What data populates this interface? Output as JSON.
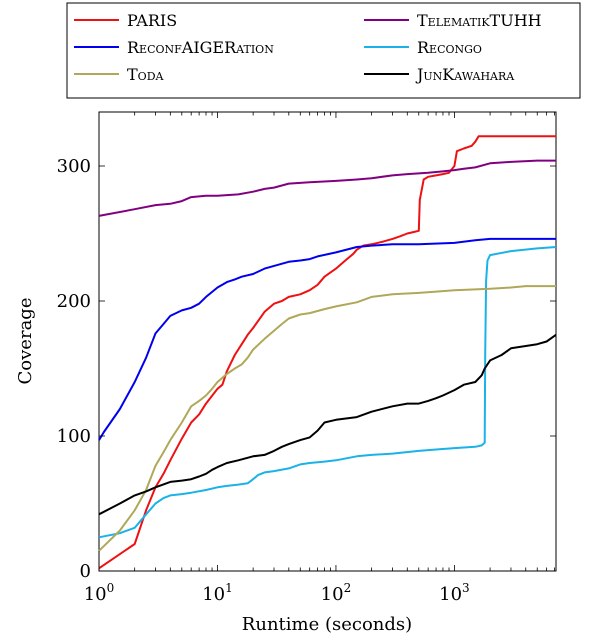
{
  "chart_data": {
    "type": "line",
    "xlabel": "Runtime (seconds)",
    "ylabel": "Coverage",
    "xscale": "log",
    "xlim": [
      1,
      7200
    ],
    "ylim": [
      0,
      340
    ],
    "grid": false,
    "legend_placement": "top",
    "x_tick_labels": [
      {
        "base": "10",
        "exp": "0",
        "value": 1
      },
      {
        "base": "10",
        "exp": "1",
        "value": 10
      },
      {
        "base": "10",
        "exp": "2",
        "value": 100
      },
      {
        "base": "10",
        "exp": "3",
        "value": 1000
      }
    ],
    "y_tick_labels": [
      {
        "label": "0",
        "value": 0
      },
      {
        "label": "100",
        "value": 100
      },
      {
        "label": "200",
        "value": 200
      },
      {
        "label": "300",
        "value": 300
      }
    ],
    "series": [
      {
        "name": "PARIS",
        "color": "#ee1111",
        "points": [
          [
            1,
            2
          ],
          [
            2,
            20
          ],
          [
            2.5,
            45
          ],
          [
            3,
            62
          ],
          [
            3.5,
            72
          ],
          [
            4,
            82
          ],
          [
            5,
            98
          ],
          [
            6,
            110
          ],
          [
            7,
            116
          ],
          [
            8,
            124
          ],
          [
            10,
            135
          ],
          [
            11,
            138
          ],
          [
            12,
            148
          ],
          [
            14,
            160
          ],
          [
            16,
            168
          ],
          [
            18,
            175
          ],
          [
            20,
            180
          ],
          [
            25,
            192
          ],
          [
            30,
            198
          ],
          [
            35,
            200
          ],
          [
            40,
            203
          ],
          [
            50,
            205
          ],
          [
            60,
            208
          ],
          [
            70,
            212
          ],
          [
            80,
            218
          ],
          [
            100,
            224
          ],
          [
            120,
            230
          ],
          [
            140,
            235
          ],
          [
            150,
            238
          ],
          [
            170,
            241
          ],
          [
            200,
            242
          ],
          [
            250,
            244
          ],
          [
            300,
            246
          ],
          [
            350,
            248
          ],
          [
            400,
            250
          ],
          [
            450,
            251
          ],
          [
            500,
            252
          ],
          [
            510,
            275
          ],
          [
            550,
            290
          ],
          [
            600,
            292
          ],
          [
            700,
            293
          ],
          [
            800,
            294
          ],
          [
            900,
            295
          ],
          [
            1000,
            300
          ],
          [
            1050,
            311
          ],
          [
            1200,
            313
          ],
          [
            1400,
            315
          ],
          [
            1500,
            318
          ],
          [
            1600,
            322
          ],
          [
            2000,
            322
          ],
          [
            4000,
            322
          ],
          [
            7200,
            322
          ]
        ]
      },
      {
        "name": "TelematikTUHH",
        "color": "#800080",
        "points": [
          [
            1,
            263
          ],
          [
            2,
            268
          ],
          [
            3,
            271
          ],
          [
            4,
            272
          ],
          [
            5,
            274
          ],
          [
            6,
            277
          ],
          [
            8,
            278
          ],
          [
            10,
            278
          ],
          [
            15,
            279
          ],
          [
            20,
            281
          ],
          [
            25,
            283
          ],
          [
            30,
            284
          ],
          [
            40,
            287
          ],
          [
            60,
            288
          ],
          [
            100,
            289
          ],
          [
            150,
            290
          ],
          [
            200,
            291
          ],
          [
            300,
            293
          ],
          [
            400,
            294
          ],
          [
            600,
            295
          ],
          [
            800,
            296
          ],
          [
            1000,
            297
          ],
          [
            1200,
            298
          ],
          [
            1500,
            299
          ],
          [
            2000,
            302
          ],
          [
            3000,
            303
          ],
          [
            5000,
            304
          ],
          [
            7200,
            304
          ]
        ]
      },
      {
        "name": "ReconfAIGERation",
        "color": "#0000ee",
        "points": [
          [
            1,
            97
          ],
          [
            1.1,
            103
          ],
          [
            1.5,
            120
          ],
          [
            2,
            140
          ],
          [
            2.5,
            158
          ],
          [
            3,
            176
          ],
          [
            3.5,
            183
          ],
          [
            4,
            189
          ],
          [
            5,
            193
          ],
          [
            6,
            195
          ],
          [
            7,
            198
          ],
          [
            8,
            203
          ],
          [
            10,
            210
          ],
          [
            12,
            214
          ],
          [
            14,
            216
          ],
          [
            16,
            218
          ],
          [
            20,
            220
          ],
          [
            25,
            224
          ],
          [
            30,
            226
          ],
          [
            40,
            229
          ],
          [
            50,
            230
          ],
          [
            60,
            231
          ],
          [
            70,
            233
          ],
          [
            100,
            236
          ],
          [
            150,
            240
          ],
          [
            200,
            241
          ],
          [
            300,
            242
          ],
          [
            500,
            242
          ],
          [
            1000,
            243
          ],
          [
            1500,
            245
          ],
          [
            2000,
            246
          ],
          [
            4000,
            246
          ],
          [
            7200,
            246
          ]
        ]
      },
      {
        "name": "Recongo",
        "color": "#1ab2e8",
        "points": [
          [
            1,
            25
          ],
          [
            1.5,
            28
          ],
          [
            2,
            32
          ],
          [
            2.5,
            42
          ],
          [
            3,
            50
          ],
          [
            3.5,
            54
          ],
          [
            4,
            56
          ],
          [
            5,
            57
          ],
          [
            6,
            58
          ],
          [
            8,
            60
          ],
          [
            10,
            62
          ],
          [
            12,
            63
          ],
          [
            15,
            64
          ],
          [
            18,
            65
          ],
          [
            20,
            68
          ],
          [
            22,
            71
          ],
          [
            25,
            73
          ],
          [
            30,
            74
          ],
          [
            40,
            76
          ],
          [
            50,
            79
          ],
          [
            60,
            80
          ],
          [
            80,
            81
          ],
          [
            100,
            82
          ],
          [
            150,
            85
          ],
          [
            200,
            86
          ],
          [
            300,
            87
          ],
          [
            500,
            89
          ],
          [
            700,
            90
          ],
          [
            1000,
            91
          ],
          [
            1500,
            92
          ],
          [
            1700,
            93
          ],
          [
            1800,
            95
          ],
          [
            1820,
            160
          ],
          [
            1850,
            215
          ],
          [
            1900,
            230
          ],
          [
            2000,
            234
          ],
          [
            3000,
            237
          ],
          [
            5000,
            239
          ],
          [
            7200,
            240
          ]
        ]
      },
      {
        "name": "Toda",
        "color": "#b0a858",
        "points": [
          [
            1,
            15
          ],
          [
            1.5,
            30
          ],
          [
            2,
            45
          ],
          [
            2.5,
            60
          ],
          [
            3,
            78
          ],
          [
            3.5,
            88
          ],
          [
            4,
            97
          ],
          [
            5,
            110
          ],
          [
            6,
            122
          ],
          [
            7,
            126
          ],
          [
            8,
            130
          ],
          [
            9,
            135
          ],
          [
            10,
            140
          ],
          [
            12,
            146
          ],
          [
            14,
            150
          ],
          [
            16,
            153
          ],
          [
            18,
            158
          ],
          [
            20,
            164
          ],
          [
            25,
            172
          ],
          [
            30,
            178
          ],
          [
            35,
            183
          ],
          [
            40,
            187
          ],
          [
            50,
            190
          ],
          [
            60,
            191
          ],
          [
            80,
            194
          ],
          [
            100,
            196
          ],
          [
            150,
            199
          ],
          [
            200,
            203
          ],
          [
            300,
            205
          ],
          [
            500,
            206
          ],
          [
            700,
            207
          ],
          [
            1000,
            208
          ],
          [
            2000,
            209
          ],
          [
            3000,
            210
          ],
          [
            4000,
            211
          ],
          [
            7200,
            211
          ]
        ]
      },
      {
        "name": "JunKawahara",
        "color": "#000000",
        "points": [
          [
            1,
            42
          ],
          [
            1.5,
            50
          ],
          [
            2,
            56
          ],
          [
            2.5,
            59
          ],
          [
            3,
            62
          ],
          [
            4,
            66
          ],
          [
            5,
            67
          ],
          [
            6,
            68
          ],
          [
            7,
            70
          ],
          [
            8,
            72
          ],
          [
            9,
            75
          ],
          [
            10,
            77
          ],
          [
            12,
            80
          ],
          [
            15,
            82
          ],
          [
            20,
            85
          ],
          [
            25,
            86
          ],
          [
            30,
            89
          ],
          [
            35,
            92
          ],
          [
            40,
            94
          ],
          [
            50,
            97
          ],
          [
            60,
            99
          ],
          [
            70,
            104
          ],
          [
            80,
            110
          ],
          [
            100,
            112
          ],
          [
            150,
            114
          ],
          [
            200,
            118
          ],
          [
            300,
            122
          ],
          [
            400,
            124
          ],
          [
            500,
            124
          ],
          [
            600,
            126
          ],
          [
            700,
            128
          ],
          [
            800,
            130
          ],
          [
            1000,
            134
          ],
          [
            1200,
            138
          ],
          [
            1500,
            140
          ],
          [
            1700,
            145
          ],
          [
            1800,
            150
          ],
          [
            2000,
            156
          ],
          [
            2500,
            160
          ],
          [
            3000,
            165
          ],
          [
            5000,
            168
          ],
          [
            6000,
            170
          ],
          [
            7200,
            175
          ]
        ]
      }
    ]
  }
}
